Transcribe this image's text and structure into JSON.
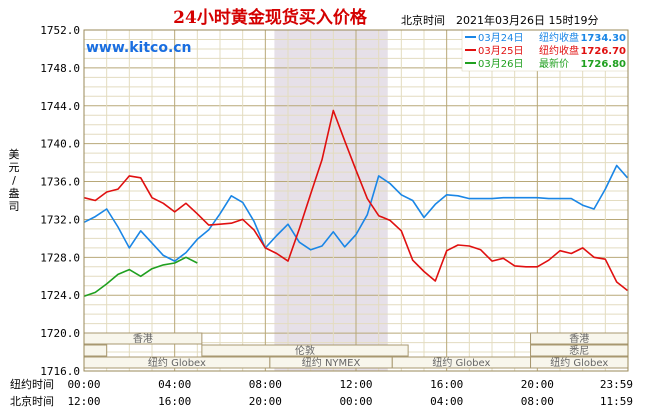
{
  "chart_data": {
    "type": "line",
    "title": "24小时黄金现货买入价格",
    "datetime": "北京时间　2021年03月26日 15时19分",
    "watermark": "www.kitco.cn",
    "ylabel": "美元/盎司",
    "ylim": [
      1716,
      1752
    ],
    "y_ticks": [
      "1752.0",
      "1748.0",
      "1744.0",
      "1740.0",
      "1736.0",
      "1732.0",
      "1728.0",
      "1724.0",
      "1720.0",
      "1716.0"
    ],
    "x_axis_rows": [
      {
        "label": "纽约时间",
        "ticks": [
          "00:00",
          "04:00",
          "08:00",
          "12:00",
          "16:00",
          "20:00",
          "23:59"
        ]
      },
      {
        "label": "北京时间",
        "ticks": [
          "12:00",
          "16:00",
          "20:00",
          "00:00",
          "04:00",
          "08:00",
          "11:59"
        ]
      }
    ],
    "grid": true,
    "legend": "top-right",
    "market_bands": {
      "row1": [
        "香港",
        "香港"
      ],
      "row2": [
        "伦敦",
        "悉尼"
      ],
      "row3": [
        "纽约 Globex",
        "纽约 NYMEX",
        "纽约 Globex",
        "纽约 Globex"
      ]
    },
    "series": [
      {
        "name": "03月24日",
        "legend_label": "纽约收盘",
        "legend_value": "1734.30",
        "color": "#1a86e6",
        "x": [
          0,
          0.5,
          1,
          1.5,
          2,
          2.5,
          3,
          3.5,
          4,
          4.5,
          5,
          5.5,
          6,
          6.5,
          7,
          7.5,
          8,
          8.5,
          9,
          9.5,
          10,
          10.5,
          11,
          11.5,
          12,
          12.5,
          13,
          13.5,
          14,
          14.5,
          15,
          15.5,
          16,
          16.5,
          17,
          17.5,
          18,
          18.5,
          19,
          19.5,
          20,
          20.5,
          21,
          21.5,
          22,
          22.5,
          23,
          23.5,
          23.98
        ],
        "y": [
          1731.7,
          1732.3,
          1733.1,
          1731.2,
          1729.0,
          1730.8,
          1729.5,
          1728.2,
          1727.6,
          1728.5,
          1729.9,
          1730.9,
          1732.6,
          1734.5,
          1733.8,
          1731.8,
          1729.0,
          1730.3,
          1731.5,
          1729.6,
          1728.8,
          1729.2,
          1730.7,
          1729.1,
          1730.4,
          1732.5,
          1736.6,
          1735.8,
          1734.6,
          1734.0,
          1732.2,
          1733.6,
          1734.6,
          1734.5,
          1734.2,
          1734.2,
          1734.2,
          1734.3,
          1734.3,
          1734.3,
          1734.3,
          1734.2,
          1734.2,
          1734.2,
          1733.5,
          1733.1,
          1735.2,
          1737.7,
          1736.4
        ]
      },
      {
        "name": "03月25日",
        "legend_label": "纽约收盘",
        "legend_value": "1726.70",
        "color": "#e01010",
        "x": [
          0,
          0.5,
          1,
          1.5,
          2,
          2.5,
          3,
          3.5,
          4,
          4.5,
          5,
          5.5,
          6,
          6.5,
          7,
          7.5,
          8,
          8.5,
          9,
          9.5,
          10,
          10.5,
          11,
          11.5,
          12,
          12.5,
          13,
          13.5,
          14,
          14.5,
          15,
          15.5,
          16,
          16.5,
          17,
          17.5,
          18,
          18.5,
          19,
          19.5,
          20,
          20.5,
          21,
          21.5,
          22,
          22.5,
          23,
          23.5,
          23.98
        ],
        "y": [
          1734.3,
          1734.0,
          1734.9,
          1735.2,
          1736.6,
          1736.4,
          1734.3,
          1733.7,
          1732.8,
          1733.7,
          1732.6,
          1731.4,
          1731.5,
          1731.6,
          1732.0,
          1730.9,
          1729.0,
          1728.4,
          1727.6,
          1731.0,
          1734.7,
          1738.3,
          1743.5,
          1740.3,
          1737.2,
          1734.2,
          1732.4,
          1731.9,
          1730.8,
          1727.7,
          1726.5,
          1725.5,
          1728.7,
          1729.3,
          1729.2,
          1728.8,
          1727.6,
          1727.9,
          1727.1,
          1727.0,
          1727.0,
          1727.7,
          1728.7,
          1728.4,
          1729.0,
          1728.0,
          1727.8,
          1725.4,
          1724.5
        ]
      },
      {
        "name": "03月26日",
        "legend_label": "最新价",
        "legend_value": "1726.80",
        "color": "#20a020",
        "x": [
          0,
          0.5,
          1,
          1.5,
          2,
          2.5,
          3,
          3.5,
          4,
          4.5,
          5
        ],
        "y": [
          1723.9,
          1724.3,
          1725.2,
          1726.2,
          1726.7,
          1726.0,
          1726.8,
          1727.2,
          1727.4,
          1728.0,
          1727.4
        ]
      }
    ]
  }
}
